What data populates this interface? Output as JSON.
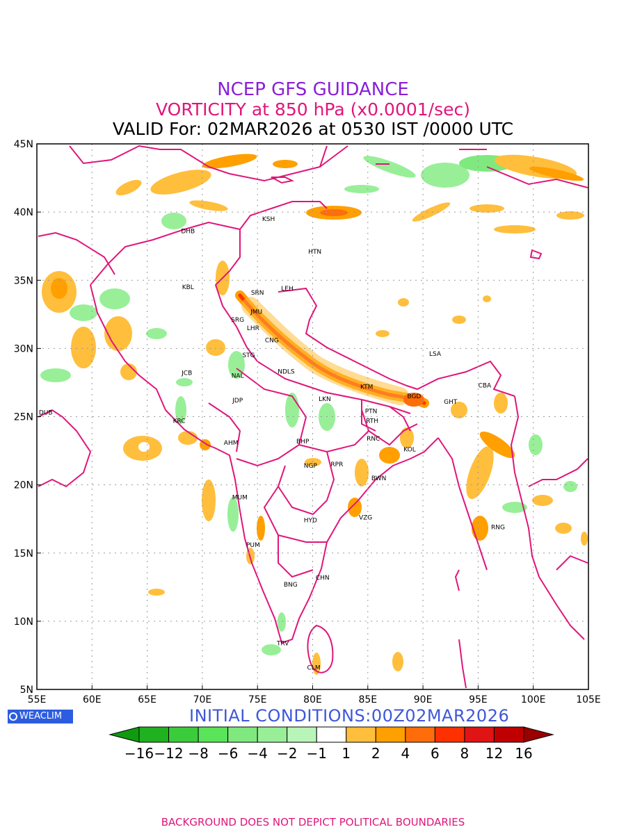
{
  "titles": {
    "line1": "NCEP GFS GUIDANCE",
    "line2": "VORTICITY at 850 hPa (x0.0001/sec)",
    "line3": "VALID For: 02MAR2026 at 0530 IST /0000 UTC"
  },
  "map": {
    "lon_range": [
      55,
      105
    ],
    "lat_range": [
      5,
      45
    ],
    "x_ticks": [
      "55E",
      "60E",
      "65E",
      "70E",
      "75E",
      "80E",
      "85E",
      "90E",
      "95E",
      "100E",
      "105E"
    ],
    "y_ticks": [
      "45N",
      "40N",
      "35N",
      "30N",
      "25N",
      "20N",
      "15N",
      "10N",
      "5N"
    ],
    "grid": true,
    "cities": [
      {
        "code": "KSH",
        "lon": 76.0,
        "lat": 39.5
      },
      {
        "code": "DHB",
        "lon": 68.7,
        "lat": 38.6
      },
      {
        "code": "HTN",
        "lon": 80.2,
        "lat": 37.1
      },
      {
        "code": "KBL",
        "lon": 68.7,
        "lat": 34.5
      },
      {
        "code": "SRN",
        "lon": 75.0,
        "lat": 34.1
      },
      {
        "code": "LEH",
        "lon": 77.7,
        "lat": 34.4
      },
      {
        "code": "JMU",
        "lon": 74.9,
        "lat": 32.7
      },
      {
        "code": "SRG",
        "lon": 73.2,
        "lat": 32.1
      },
      {
        "code": "LHR",
        "lon": 74.6,
        "lat": 31.5
      },
      {
        "code": "CNG",
        "lon": 76.3,
        "lat": 30.6
      },
      {
        "code": "LSA",
        "lon": 91.1,
        "lat": 29.6
      },
      {
        "code": "STG",
        "lon": 74.2,
        "lat": 29.5
      },
      {
        "code": "JCB",
        "lon": 68.6,
        "lat": 28.2
      },
      {
        "code": "NAL",
        "lon": 73.2,
        "lat": 28.0
      },
      {
        "code": "NDLS",
        "lon": 77.6,
        "lat": 28.3
      },
      {
        "code": "KTM",
        "lon": 84.9,
        "lat": 27.2
      },
      {
        "code": "CBA",
        "lon": 95.6,
        "lat": 27.3
      },
      {
        "code": "BGD",
        "lon": 89.2,
        "lat": 26.5
      },
      {
        "code": "GHT",
        "lon": 92.5,
        "lat": 26.1
      },
      {
        "code": "JDP",
        "lon": 73.2,
        "lat": 26.2
      },
      {
        "code": "LKN",
        "lon": 81.1,
        "lat": 26.3
      },
      {
        "code": "PTN",
        "lon": 85.3,
        "lat": 25.4
      },
      {
        "code": "DUB",
        "lon": 55.8,
        "lat": 25.3
      },
      {
        "code": "KRC",
        "lon": 67.9,
        "lat": 24.7
      },
      {
        "code": "RTH",
        "lon": 85.4,
        "lat": 24.7
      },
      {
        "code": "AHM",
        "lon": 72.6,
        "lat": 23.1
      },
      {
        "code": "BHP",
        "lon": 79.1,
        "lat": 23.2
      },
      {
        "code": "RNC",
        "lon": 85.5,
        "lat": 23.4
      },
      {
        "code": "KOL",
        "lon": 88.8,
        "lat": 22.6
      },
      {
        "code": "NGP",
        "lon": 79.8,
        "lat": 21.4
      },
      {
        "code": "RPR",
        "lon": 82.2,
        "lat": 21.5
      },
      {
        "code": "BWN",
        "lon": 86.0,
        "lat": 20.5
      },
      {
        "code": "MUM",
        "lon": 73.4,
        "lat": 19.1
      },
      {
        "code": "HYD",
        "lon": 79.8,
        "lat": 17.4
      },
      {
        "code": "VZG",
        "lon": 84.8,
        "lat": 17.6
      },
      {
        "code": "RNG",
        "lon": 96.8,
        "lat": 16.9
      },
      {
        "code": "PUM",
        "lon": 74.6,
        "lat": 15.6
      },
      {
        "code": "CHN",
        "lon": 80.9,
        "lat": 13.2
      },
      {
        "code": "BNG",
        "lon": 78.0,
        "lat": 12.7
      },
      {
        "code": "TRV",
        "lon": 77.3,
        "lat": 8.4
      },
      {
        "code": "CLM",
        "lon": 80.1,
        "lat": 6.6
      }
    ]
  },
  "logo": {
    "text": "WEACLIM"
  },
  "initial_conditions": "INITIAL CONDITIONS:00Z02MAR2026",
  "colorbar": {
    "labels": [
      "−16",
      "−12",
      "−8",
      "−6",
      "−4",
      "−2",
      "−1",
      "1",
      "2",
      "4",
      "6",
      "8",
      "12",
      "16"
    ],
    "colors": [
      "#0f9a0f",
      "#1fb11f",
      "#3bcc3b",
      "#5ae45a",
      "#7fe97f",
      "#98ef98",
      "#b9f5b9",
      "#ffffff",
      "#ffbe3c",
      "#ff9f00",
      "#ff6c0a",
      "#ff3000",
      "#e01414",
      "#c00000",
      "#9a0000"
    ]
  },
  "footer": "BACKGROUND DOES NOT DEPICT POLITICAL BOUNDARIES"
}
